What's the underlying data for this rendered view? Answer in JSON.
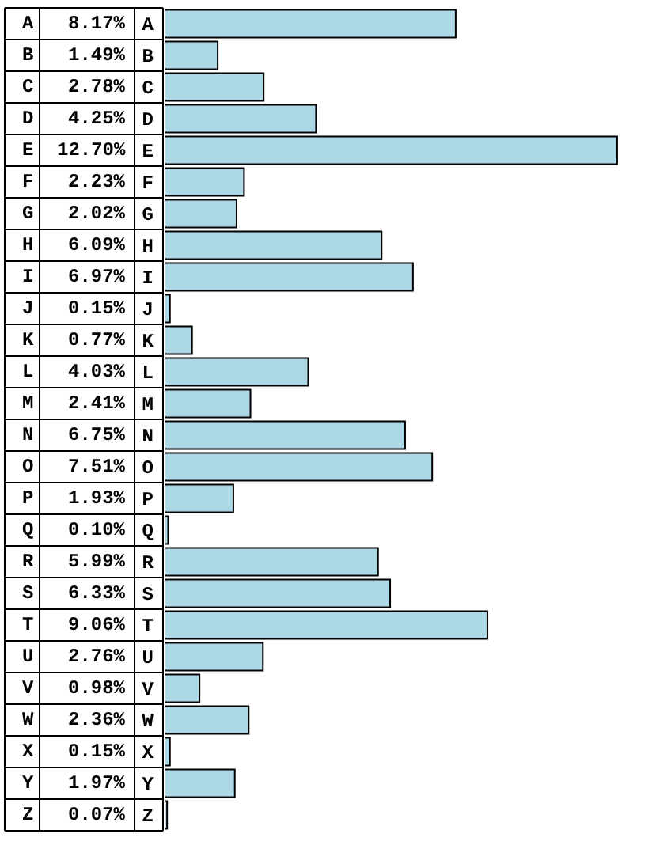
{
  "chart_data": {
    "type": "bar",
    "orientation": "horizontal",
    "categories": [
      "A",
      "B",
      "C",
      "D",
      "E",
      "F",
      "G",
      "H",
      "I",
      "J",
      "K",
      "L",
      "M",
      "N",
      "O",
      "P",
      "Q",
      "R",
      "S",
      "T",
      "U",
      "V",
      "W",
      "X",
      "Y",
      "Z"
    ],
    "values": [
      8.17,
      1.49,
      2.78,
      4.25,
      12.7,
      2.23,
      2.02,
      6.09,
      6.97,
      0.15,
      0.77,
      4.03,
      2.41,
      6.75,
      7.51,
      1.93,
      0.1,
      5.99,
      6.33,
      9.06,
      2.76,
      0.98,
      2.36,
      0.15,
      1.97,
      0.07
    ],
    "value_labels": [
      "8.17%",
      "1.49%",
      "2.78%",
      "4.25%",
      "12.70%",
      "2.23%",
      "2.02%",
      "6.09%",
      "6.97%",
      "0.15%",
      "0.77%",
      "4.03%",
      "2.41%",
      "6.75%",
      "7.51%",
      "1.93%",
      "0.10%",
      "5.99%",
      "6.33%",
      "9.06%",
      "2.76%",
      "0.98%",
      "2.36%",
      "0.15%",
      "1.97%",
      "0.07%"
    ],
    "color": "#add8e6"
  }
}
